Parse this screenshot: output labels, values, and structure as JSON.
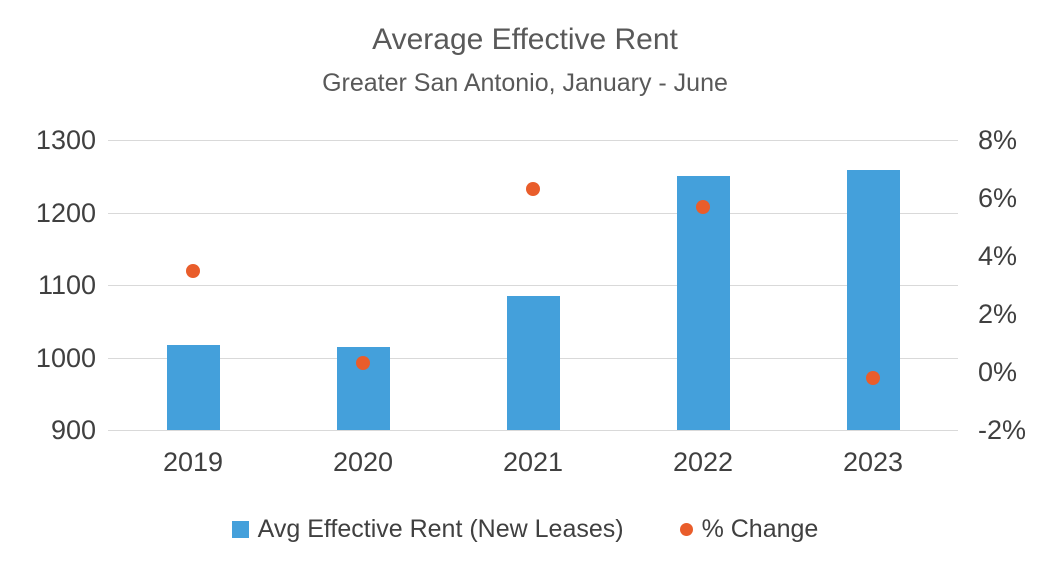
{
  "title": "Average Effective Rent",
  "subtitle": "Greater San Antonio, January - June",
  "legend": {
    "rent_label": "Avg Effective Rent (New Leases)",
    "change_label": "% Change"
  },
  "colors": {
    "bar": "#44A0DB",
    "point": "#E95D2B",
    "title_text": "#595959",
    "axis_text": "#404040",
    "gridline": "#D9D9D9",
    "background": "#FFFFFF"
  },
  "chart_data": {
    "type": "bar",
    "subtype": "combo-bar-scatter",
    "title": "Average Effective Rent",
    "subtitle": "Greater San Antonio, January - June",
    "categories": [
      "2019",
      "2020",
      "2021",
      "2022",
      "2023"
    ],
    "series": [
      {
        "name": "Avg Effective Rent (New Leases)",
        "type": "bar",
        "axis": "left",
        "values": [
          1017,
          1015,
          1085,
          1251,
          1259
        ]
      },
      {
        "name": "% Change",
        "type": "scatter",
        "axis": "right",
        "values": [
          3.5,
          0.3,
          6.3,
          5.7,
          -0.2
        ]
      }
    ],
    "left_axis": {
      "min": 900,
      "max": 1300,
      "tick_labels": [
        "1300",
        "1200",
        "1100",
        "1000",
        "900"
      ]
    },
    "right_axis": {
      "min": -2,
      "max": 8,
      "tick_labels": [
        "8%",
        "6%",
        "4%",
        "2%",
        "0%",
        "-2%"
      ]
    },
    "grid": true,
    "legend_position": "bottom"
  }
}
